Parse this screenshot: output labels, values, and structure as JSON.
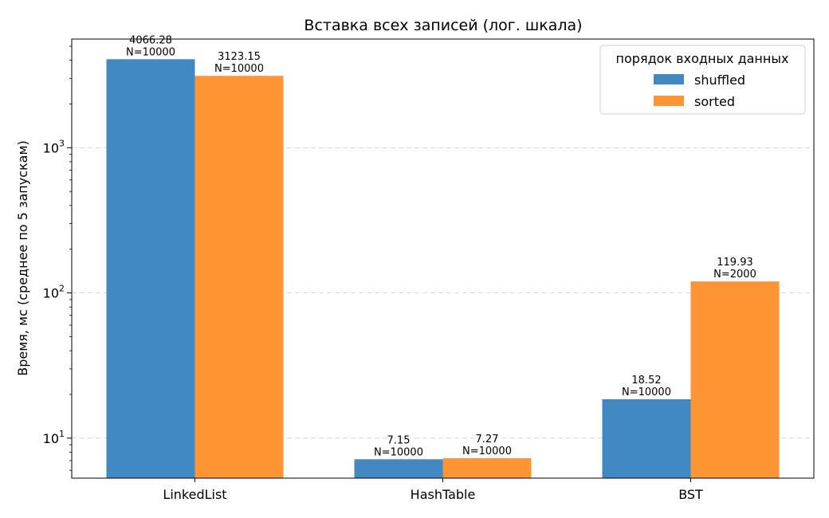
{
  "chart_data": {
    "type": "bar",
    "title": "Вставка всех записей (лог. шкала)",
    "xlabel": "",
    "ylabel": "Время, мс (среднее по 5 запускам)",
    "yscale": "log",
    "ylim": [
      5.3,
      5600
    ],
    "y_major_ticks": [
      10,
      100,
      1000
    ],
    "y_tick_labels": [
      {
        "base": "10",
        "exp": "1"
      },
      {
        "base": "10",
        "exp": "2"
      },
      {
        "base": "10",
        "exp": "3"
      }
    ],
    "grid": {
      "y_major": true,
      "style": "dashed"
    },
    "categories": [
      "LinkedList",
      "HashTable",
      "BST"
    ],
    "series": [
      {
        "name": "shuffled",
        "color": "#4189c0",
        "values": [
          4066.28,
          7.15,
          18.52
        ],
        "labels": [
          "4066.28",
          "7.15",
          "18.52"
        ],
        "n_labels": [
          "N=10000",
          "N=10000",
          "N=10000"
        ]
      },
      {
        "name": "sorted",
        "color": "#ff9435",
        "values": [
          3123.15,
          7.27,
          119.93
        ],
        "labels": [
          "3123.15",
          "7.27",
          "119.93"
        ],
        "n_labels": [
          "N=10000",
          "N=10000",
          "N=2000"
        ]
      }
    ],
    "legend": {
      "title": "порядок входных данных",
      "placement": "top-right"
    }
  }
}
